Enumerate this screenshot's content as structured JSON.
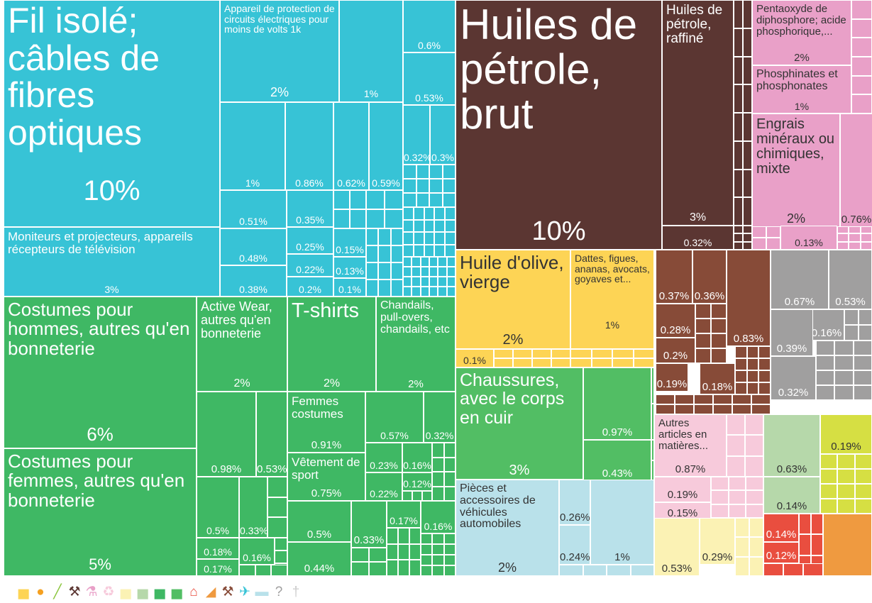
{
  "chart_data": {
    "type": "treemap",
    "tiles": [
      {
        "label": "Fil isolé; câbles de fibres optiques",
        "value": "10%",
        "color": "#37c3d6",
        "text_color": "#fff"
      },
      {
        "label": "Moniteurs et projecteurs, appareils récepteurs de télévision",
        "value": "3%",
        "color": "#37c3d6",
        "text_color": "#fff"
      },
      {
        "label": "Appareil de protection de circuits électriques pour moins de volts 1k",
        "value": "2%",
        "color": "#37c3d6",
        "text_color": "#fff"
      },
      {
        "label": "",
        "value": "1%",
        "color": "#37c3d6",
        "text_color": "#fff"
      },
      {
        "label": "",
        "value": "0.6%",
        "color": "#37c3d6",
        "text_color": "#fff"
      },
      {
        "label": "",
        "value": "0.53%",
        "color": "#37c3d6",
        "text_color": "#fff"
      },
      {
        "label": "",
        "value": "1%",
        "color": "#37c3d6",
        "text_color": "#fff"
      },
      {
        "label": "",
        "value": "0.86%",
        "color": "#37c3d6",
        "text_color": "#fff"
      },
      {
        "label": "",
        "value": "0.62%",
        "color": "#37c3d6",
        "text_color": "#fff"
      },
      {
        "label": "",
        "value": "0.59%",
        "color": "#37c3d6",
        "text_color": "#fff"
      },
      {
        "label": "",
        "value": "0.32%",
        "color": "#37c3d6",
        "text_color": "#fff"
      },
      {
        "label": "",
        "value": "0.3%",
        "color": "#37c3d6",
        "text_color": "#fff"
      },
      {
        "label": "",
        "value": "0.51%",
        "color": "#37c3d6",
        "text_color": "#fff"
      },
      {
        "label": "",
        "value": "0.48%",
        "color": "#37c3d6",
        "text_color": "#fff"
      },
      {
        "label": "",
        "value": "0.38%",
        "color": "#37c3d6",
        "text_color": "#fff"
      },
      {
        "label": "",
        "value": "0.35%",
        "color": "#37c3d6",
        "text_color": "#fff"
      },
      {
        "label": "",
        "value": "0.25%",
        "color": "#37c3d6",
        "text_color": "#fff"
      },
      {
        "label": "",
        "value": "0.22%",
        "color": "#37c3d6",
        "text_color": "#fff"
      },
      {
        "label": "",
        "value": "0.2%",
        "color": "#37c3d6",
        "text_color": "#fff"
      },
      {
        "label": "",
        "value": "0.15%",
        "color": "#37c3d6",
        "text_color": "#fff"
      },
      {
        "label": "",
        "value": "0.13%",
        "color": "#37c3d6",
        "text_color": "#fff"
      },
      {
        "label": "",
        "value": "0.1%",
        "color": "#37c3d6",
        "text_color": "#fff"
      },
      {
        "label": "Costumes pour hommes, autres qu'en bonneterie",
        "value": "6%",
        "color": "#3fb864",
        "text_color": "#fff"
      },
      {
        "label": "Costumes pour femmes, autres qu'en bonneterie",
        "value": "5%",
        "color": "#3fb864",
        "text_color": "#fff"
      },
      {
        "label": "Active Wear, autres qu'en bonneterie",
        "value": "2%",
        "color": "#3fb864",
        "text_color": "#fff"
      },
      {
        "label": "T-shirts",
        "value": "2%",
        "color": "#3fb864",
        "text_color": "#fff"
      },
      {
        "label": "Chandails, pull-overs, chandails, etc",
        "value": "2%",
        "color": "#3fb864",
        "text_color": "#fff"
      },
      {
        "label": "Femmes costumes",
        "value": "0.91%",
        "color": "#3fb864",
        "text_color": "#fff"
      },
      {
        "label": "Vêtement de sport",
        "value": "0.75%",
        "color": "#3fb864",
        "text_color": "#fff"
      },
      {
        "label": "",
        "value": "0.98%",
        "color": "#3fb864",
        "text_color": "#fff"
      },
      {
        "label": "",
        "value": "0.53%",
        "color": "#3fb864",
        "text_color": "#fff"
      },
      {
        "label": "",
        "value": "0.5%",
        "color": "#3fb864",
        "text_color": "#fff"
      },
      {
        "label": "",
        "value": "0.33%",
        "color": "#3fb864",
        "text_color": "#fff"
      },
      {
        "label": "",
        "value": "0.18%",
        "color": "#3fb864",
        "text_color": "#fff"
      },
      {
        "label": "",
        "value": "0.16%",
        "color": "#3fb864",
        "text_color": "#fff"
      },
      {
        "label": "",
        "value": "0.17%",
        "color": "#3fb864",
        "text_color": "#fff"
      },
      {
        "label": "",
        "value": "0.57%",
        "color": "#3fb864",
        "text_color": "#fff"
      },
      {
        "label": "",
        "value": "0.32%",
        "color": "#3fb864",
        "text_color": "#fff"
      },
      {
        "label": "",
        "value": "0.23%",
        "color": "#3fb864",
        "text_color": "#fff"
      },
      {
        "label": "",
        "value": "0.16%",
        "color": "#3fb864",
        "text_color": "#fff"
      },
      {
        "label": "",
        "value": "0.12%",
        "color": "#3fb864",
        "text_color": "#fff"
      },
      {
        "label": "",
        "value": "0.22%",
        "color": "#3fb864",
        "text_color": "#fff"
      },
      {
        "label": "",
        "value": "0.5%",
        "color": "#3fb864",
        "text_color": "#fff"
      },
      {
        "label": "",
        "value": "0.33%",
        "color": "#3fb864",
        "text_color": "#fff"
      },
      {
        "label": "",
        "value": "0.17%",
        "color": "#3fb864",
        "text_color": "#fff"
      },
      {
        "label": "",
        "value": "0.16%",
        "color": "#3fb864",
        "text_color": "#fff"
      },
      {
        "label": "",
        "value": "0.44%",
        "color": "#3fb864",
        "text_color": "#fff"
      },
      {
        "label": "Huiles de pétrole, brut",
        "value": "10%",
        "color": "#5b3632",
        "text_color": "#fff"
      },
      {
        "label": "Huiles de pétrole, raffiné",
        "value": "3%",
        "color": "#5b3632",
        "text_color": "#fff"
      },
      {
        "label": "",
        "value": "0.32%",
        "color": "#5b3632",
        "text_color": "#fff"
      },
      {
        "label": "Pentaoxyde de diphosphore; acide phosphorique,...",
        "value": "2%",
        "color": "#e9a0c8",
        "text_color": "#333"
      },
      {
        "label": "Phosphinates et phosphonates",
        "value": "1%",
        "color": "#e9a0c8",
        "text_color": "#333"
      },
      {
        "label": "Engrais minéraux ou chimiques, mixte",
        "value": "2%",
        "color": "#e9a0c8",
        "text_color": "#333"
      },
      {
        "label": "",
        "value": "0.76%",
        "color": "#e9a0c8",
        "text_color": "#333"
      },
      {
        "label": "",
        "value": "0.13%",
        "color": "#e9a0c8",
        "text_color": "#333"
      },
      {
        "label": "Huile d'olive, vierge",
        "value": "2%",
        "color": "#fdd455",
        "text_color": "#333"
      },
      {
        "label": "",
        "value": "0.1%",
        "color": "#fdd455",
        "text_color": "#333"
      },
      {
        "label": "Dattes, figues, ananas, avocats, goyaves et...",
        "value": "1%",
        "color": "#fdd455",
        "text_color": "#333"
      },
      {
        "label": "",
        "value": "0.37%",
        "color": "#874b38",
        "text_color": "#fff"
      },
      {
        "label": "",
        "value": "0.36%",
        "color": "#874b38",
        "text_color": "#fff"
      },
      {
        "label": "",
        "value": "0.28%",
        "color": "#874b38",
        "text_color": "#fff"
      },
      {
        "label": "",
        "value": "0.83%",
        "color": "#874b38",
        "text_color": "#fff"
      },
      {
        "label": "",
        "value": "0.2%",
        "color": "#874b38",
        "text_color": "#fff"
      },
      {
        "label": "",
        "value": "0.19%",
        "color": "#874b38",
        "text_color": "#fff"
      },
      {
        "label": "",
        "value": "0.18%",
        "color": "#874b38",
        "text_color": "#fff"
      },
      {
        "label": "",
        "value": "0.67%",
        "color": "#a09f9f",
        "text_color": "#fff"
      },
      {
        "label": "",
        "value": "0.53%",
        "color": "#a09f9f",
        "text_color": "#fff"
      },
      {
        "label": "",
        "value": "0.16%",
        "color": "#a09f9f",
        "text_color": "#fff"
      },
      {
        "label": "",
        "value": "0.39%",
        "color": "#a09f9f",
        "text_color": "#fff"
      },
      {
        "label": "",
        "value": "0.32%",
        "color": "#a09f9f",
        "text_color": "#fff"
      },
      {
        "label": "Chaussures, avec le corps en cuir",
        "value": "3%",
        "color": "#52be64",
        "text_color": "#fff"
      },
      {
        "label": "",
        "value": "0.97%",
        "color": "#52be64",
        "text_color": "#fff"
      },
      {
        "label": "",
        "value": "0.43%",
        "color": "#52be64",
        "text_color": "#fff"
      },
      {
        "label": "Pièces et accessoires de véhicules automobiles",
        "value": "2%",
        "color": "#b9e1ea",
        "text_color": "#333"
      },
      {
        "label": "",
        "value": "0.26%",
        "color": "#b9e1ea",
        "text_color": "#333"
      },
      {
        "label": "",
        "value": "0.24%",
        "color": "#b9e1ea",
        "text_color": "#333"
      },
      {
        "label": "",
        "value": "1%",
        "color": "#b9e1ea",
        "text_color": "#333"
      },
      {
        "label": "Autres articles en matières...",
        "value": "0.87%",
        "color": "#f7cadb",
        "text_color": "#333"
      },
      {
        "label": "",
        "value": "0.19%",
        "color": "#f7cadb",
        "text_color": "#333"
      },
      {
        "label": "",
        "value": "0.15%",
        "color": "#f7cadb",
        "text_color": "#333"
      },
      {
        "label": "",
        "value": "0.53%",
        "color": "#fbf2b4",
        "text_color": "#333"
      },
      {
        "label": "",
        "value": "0.29%",
        "color": "#fbf2b4",
        "text_color": "#333"
      },
      {
        "label": "",
        "value": "0.63%",
        "color": "#b6d8aa",
        "text_color": "#333"
      },
      {
        "label": "",
        "value": "0.14%",
        "color": "#b6d8aa",
        "text_color": "#333"
      },
      {
        "label": "",
        "value": "0.19%",
        "color": "#d6df43",
        "text_color": "#333"
      },
      {
        "label": "",
        "value": "0.14%",
        "color": "#e94e3f",
        "text_color": "#fff"
      },
      {
        "label": "",
        "value": "0.12%",
        "color": "#e94e3f",
        "text_color": "#fff"
      },
      {
        "label": "",
        "value": "",
        "color": "#ef9a40",
        "text_color": "#fff"
      }
    ]
  },
  "legend": {
    "icons": [
      {
        "name": "animal-products-icon",
        "glyph": "▅",
        "color": "#fdd455"
      },
      {
        "name": "vegetable-products-icon",
        "glyph": "●",
        "color": "#f5a020"
      },
      {
        "name": "foodstuffs-icon",
        "glyph": "╱",
        "color": "#8cc63f"
      },
      {
        "name": "mineral-products-icon",
        "glyph": "⚒",
        "color": "#5b3632"
      },
      {
        "name": "chemical-products-icon",
        "glyph": "⚗",
        "color": "#e9a0c8"
      },
      {
        "name": "plastics-rubbers-icon",
        "glyph": "♻",
        "color": "#f7cadb"
      },
      {
        "name": "hides-skins-icon",
        "glyph": "▅",
        "color": "#fbf2b4"
      },
      {
        "name": "wood-products-icon",
        "glyph": "▅",
        "color": "#b6d8aa"
      },
      {
        "name": "textiles-icon",
        "glyph": "▅",
        "color": "#3fb864"
      },
      {
        "name": "footwear-icon",
        "glyph": "▅",
        "color": "#52be64"
      },
      {
        "name": "stone-glass-icon",
        "glyph": "⌂",
        "color": "#e94e3f"
      },
      {
        "name": "metals-icon",
        "glyph": "◢",
        "color": "#ef9a40"
      },
      {
        "name": "machines-icon",
        "glyph": "⚒",
        "color": "#874b38"
      },
      {
        "name": "transportation-icon",
        "glyph": "✈",
        "color": "#37c3d6"
      },
      {
        "name": "vehicles-icon",
        "glyph": "▬",
        "color": "#b9e1ea"
      },
      {
        "name": "miscellaneous-icon",
        "glyph": "?",
        "color": "#a09f9f"
      },
      {
        "name": "weapons-icon",
        "glyph": "†",
        "color": "#cccccc"
      }
    ]
  }
}
